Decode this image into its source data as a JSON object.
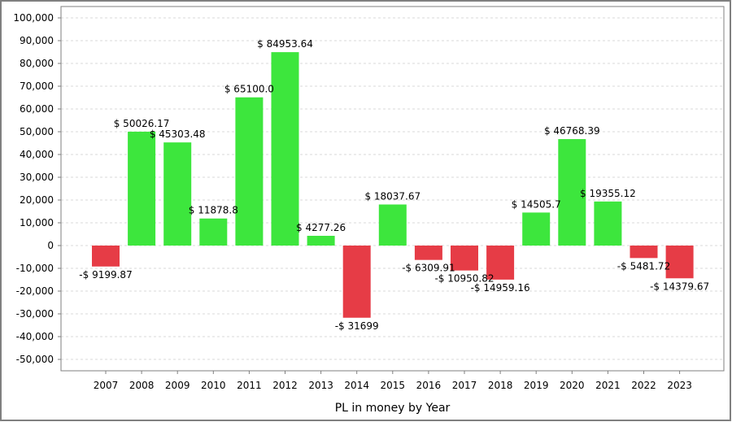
{
  "chart_data": {
    "type": "bar",
    "xlabel": "PL in money by Year",
    "ylabel": "",
    "ylim": [
      -55000,
      105000
    ],
    "yticks": [
      -50000,
      -40000,
      -30000,
      -20000,
      -10000,
      0,
      10000,
      20000,
      30000,
      40000,
      50000,
      60000,
      70000,
      80000,
      90000,
      100000
    ],
    "ytick_labels": [
      "-50,000",
      "-40,000",
      "-30,000",
      "-20,000",
      "-10,000",
      "0",
      "10,000",
      "20,000",
      "30,000",
      "40,000",
      "50,000",
      "60,000",
      "70,000",
      "80,000",
      "90,000",
      "100,000"
    ],
    "grid": true,
    "legend": "none",
    "categories": [
      "2007",
      "2008",
      "2009",
      "2010",
      "2011",
      "2012",
      "2013",
      "2014",
      "2015",
      "2016",
      "2017",
      "2018",
      "2019",
      "2020",
      "2021",
      "2022",
      "2023"
    ],
    "values": [
      -9199.87,
      50026.17,
      45303.48,
      11878.8,
      65100.0,
      84953.64,
      4277.26,
      -31699,
      18037.67,
      -6309.91,
      -10950.82,
      -14959.16,
      14505.7,
      46768.39,
      19355.12,
      -5481.72,
      -14379.67
    ],
    "data_labels": [
      "-$ 9199.87",
      "$ 50026.17",
      "$ 45303.48",
      "$ 11878.8",
      "$ 65100.0",
      "$ 84953.64",
      "$ 4277.26",
      "-$ 31699",
      "$ 18037.67",
      "-$ 6309.91",
      "-$ 10950.82",
      "-$ 14959.16",
      "$ 14505.7",
      "$ 46768.39",
      "$ 19355.12",
      "-$ 5481.72",
      "-$ 14379.67"
    ],
    "colors": {
      "positive": "#3de63d",
      "negative": "#e63c46",
      "grid": "#d9d9d9",
      "axis": "#7f7f7f",
      "frame": "#7f7f7f"
    }
  }
}
